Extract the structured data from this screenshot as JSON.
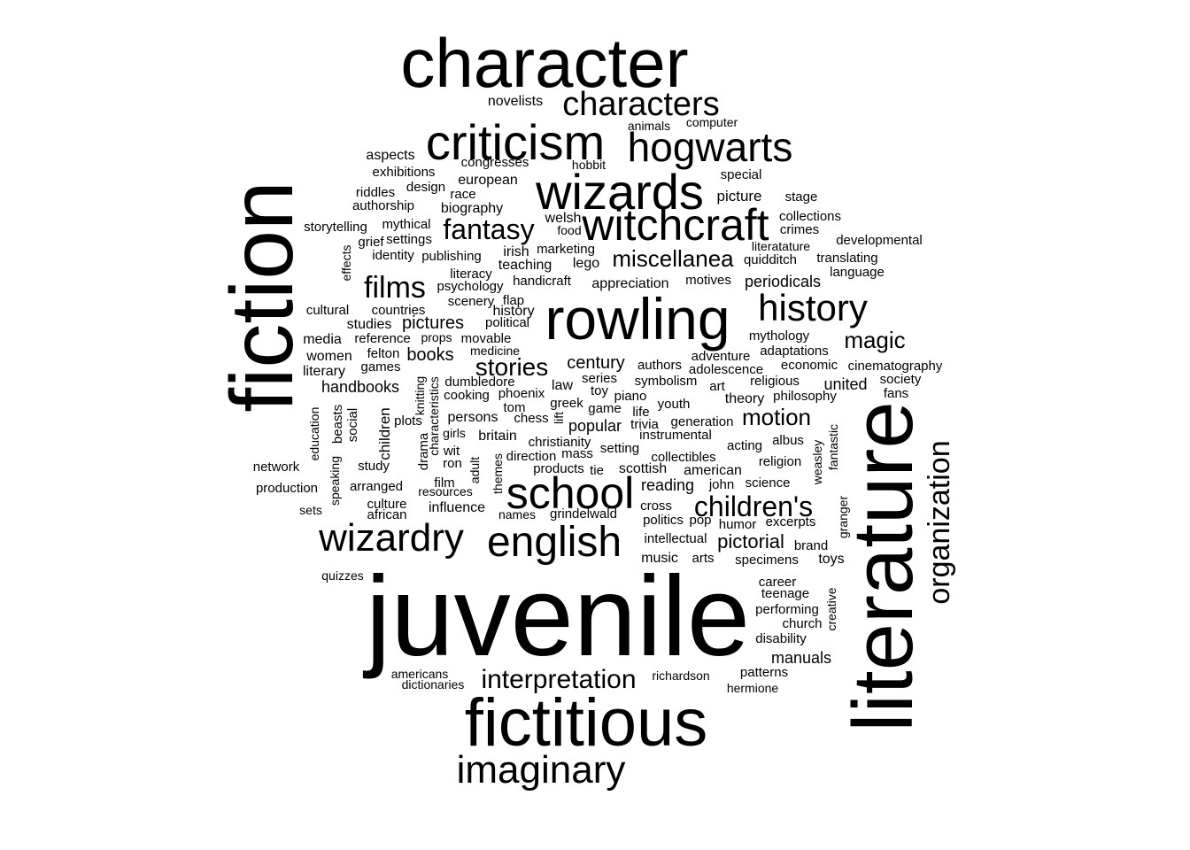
{
  "chart_data": {
    "type": "wordcloud",
    "title": "",
    "color": "#000000",
    "background": "#ffffff",
    "words": [
      {
        "text": "juvenile"
      },
      {
        "text": "fiction"
      },
      {
        "text": "literature"
      },
      {
        "text": "character"
      },
      {
        "text": "fictitious"
      },
      {
        "text": "rowling"
      },
      {
        "text": "criticism"
      },
      {
        "text": "wizards"
      },
      {
        "text": "school"
      },
      {
        "text": "witchcraft"
      },
      {
        "text": "english"
      },
      {
        "text": "hogwarts"
      },
      {
        "text": "wizardry"
      },
      {
        "text": "imaginary"
      },
      {
        "text": "characters"
      },
      {
        "text": "history"
      },
      {
        "text": "organization"
      },
      {
        "text": "films"
      },
      {
        "text": "fantasy"
      },
      {
        "text": "children's"
      },
      {
        "text": "interpretation"
      },
      {
        "text": "miscellanea"
      },
      {
        "text": "stories"
      },
      {
        "text": "magic"
      },
      {
        "text": "motion"
      },
      {
        "text": "pictorial"
      },
      {
        "text": "books"
      },
      {
        "text": "century"
      },
      {
        "text": "pictures"
      },
      {
        "text": "handbooks"
      },
      {
        "text": "manuals"
      },
      {
        "text": "popular"
      },
      {
        "text": "reading"
      },
      {
        "text": "united"
      },
      {
        "text": "history"
      },
      {
        "text": "periodicals"
      },
      {
        "text": "appreciation"
      },
      {
        "text": "biography"
      },
      {
        "text": "european"
      },
      {
        "text": "aspects"
      },
      {
        "text": "novelists"
      },
      {
        "text": "congresses"
      },
      {
        "text": "exhibitions"
      },
      {
        "text": "design"
      },
      {
        "text": "riddles"
      },
      {
        "text": "race"
      },
      {
        "text": "authorship"
      },
      {
        "text": "storytelling"
      },
      {
        "text": "mythical"
      },
      {
        "text": "welsh"
      },
      {
        "text": "food"
      },
      {
        "text": "grief"
      },
      {
        "text": "settings"
      },
      {
        "text": "identity"
      },
      {
        "text": "publishing"
      },
      {
        "text": "irish"
      },
      {
        "text": "marketing"
      },
      {
        "text": "teaching"
      },
      {
        "text": "lego"
      },
      {
        "text": "literacy"
      },
      {
        "text": "psychology"
      },
      {
        "text": "handicraft"
      },
      {
        "text": "scenery"
      },
      {
        "text": "flap"
      },
      {
        "text": "cultural"
      },
      {
        "text": "countries"
      },
      {
        "text": "studies"
      },
      {
        "text": "political"
      },
      {
        "text": "media"
      },
      {
        "text": "reference"
      },
      {
        "text": "props"
      },
      {
        "text": "movable"
      },
      {
        "text": "felton"
      },
      {
        "text": "medicine"
      },
      {
        "text": "women"
      },
      {
        "text": "literary"
      },
      {
        "text": "games"
      },
      {
        "text": "dumbledore"
      },
      {
        "text": "cooking"
      },
      {
        "text": "phoenix"
      },
      {
        "text": "law"
      },
      {
        "text": "series"
      },
      {
        "text": "toy"
      },
      {
        "text": "persons"
      },
      {
        "text": "tom"
      },
      {
        "text": "chess"
      },
      {
        "text": "greek"
      },
      {
        "text": "game"
      },
      {
        "text": "plots"
      },
      {
        "text": "girls"
      },
      {
        "text": "wit"
      },
      {
        "text": "ron"
      },
      {
        "text": "britain"
      },
      {
        "text": "christianity"
      },
      {
        "text": "direction"
      },
      {
        "text": "mass"
      },
      {
        "text": "setting"
      },
      {
        "text": "products"
      },
      {
        "text": "tie"
      },
      {
        "text": "scottish"
      },
      {
        "text": "film"
      },
      {
        "text": "resources"
      },
      {
        "text": "culture"
      },
      {
        "text": "african"
      },
      {
        "text": "influence"
      },
      {
        "text": "names"
      },
      {
        "text": "grindelwald"
      },
      {
        "text": "network"
      },
      {
        "text": "production"
      },
      {
        "text": "sets"
      },
      {
        "text": "arranged"
      },
      {
        "text": "study"
      },
      {
        "text": "quizzes"
      },
      {
        "text": "americans"
      },
      {
        "text": "dictionaries"
      },
      {
        "text": "richardson"
      },
      {
        "text": "patterns"
      },
      {
        "text": "hermione"
      },
      {
        "text": "computer"
      },
      {
        "text": "animals"
      },
      {
        "text": "hobbit"
      },
      {
        "text": "special"
      },
      {
        "text": "picture"
      },
      {
        "text": "stage"
      },
      {
        "text": "collections"
      },
      {
        "text": "crimes"
      },
      {
        "text": "developmental"
      },
      {
        "text": "literatature"
      },
      {
        "text": "quidditch"
      },
      {
        "text": "translating"
      },
      {
        "text": "language"
      },
      {
        "text": "motives"
      },
      {
        "text": "mythology"
      },
      {
        "text": "adaptations"
      },
      {
        "text": "adventure"
      },
      {
        "text": "authors"
      },
      {
        "text": "economic"
      },
      {
        "text": "cinematography"
      },
      {
        "text": "adolescence"
      },
      {
        "text": "symbolism"
      },
      {
        "text": "religious"
      },
      {
        "text": "society"
      },
      {
        "text": "art"
      },
      {
        "text": "piano"
      },
      {
        "text": "theory"
      },
      {
        "text": "philosophy"
      },
      {
        "text": "fans"
      },
      {
        "text": "youth"
      },
      {
        "text": "life"
      },
      {
        "text": "trivia"
      },
      {
        "text": "generation"
      },
      {
        "text": "instrumental"
      },
      {
        "text": "acting"
      },
      {
        "text": "albus"
      },
      {
        "text": "collectibles"
      },
      {
        "text": "religion"
      },
      {
        "text": "american"
      },
      {
        "text": "john"
      },
      {
        "text": "science"
      },
      {
        "text": "cross"
      },
      {
        "text": "politics"
      },
      {
        "text": "pop"
      },
      {
        "text": "humor"
      },
      {
        "text": "excerpts"
      },
      {
        "text": "brand"
      },
      {
        "text": "intellectual"
      },
      {
        "text": "music"
      },
      {
        "text": "arts"
      },
      {
        "text": "specimens"
      },
      {
        "text": "toys"
      },
      {
        "text": "career"
      },
      {
        "text": "teenage"
      },
      {
        "text": "performing"
      },
      {
        "text": "church"
      },
      {
        "text": "disability"
      },
      {
        "text": "effects"
      },
      {
        "text": "education"
      },
      {
        "text": "speaking"
      },
      {
        "text": "beasts"
      },
      {
        "text": "social"
      },
      {
        "text": "children"
      },
      {
        "text": "knitting"
      },
      {
        "text": "characteristics"
      },
      {
        "text": "drama"
      },
      {
        "text": "adult"
      },
      {
        "text": "themes"
      },
      {
        "text": "lift"
      },
      {
        "text": "fantastic"
      },
      {
        "text": "weasley"
      },
      {
        "text": "granger"
      },
      {
        "text": "creative"
      }
    ]
  }
}
